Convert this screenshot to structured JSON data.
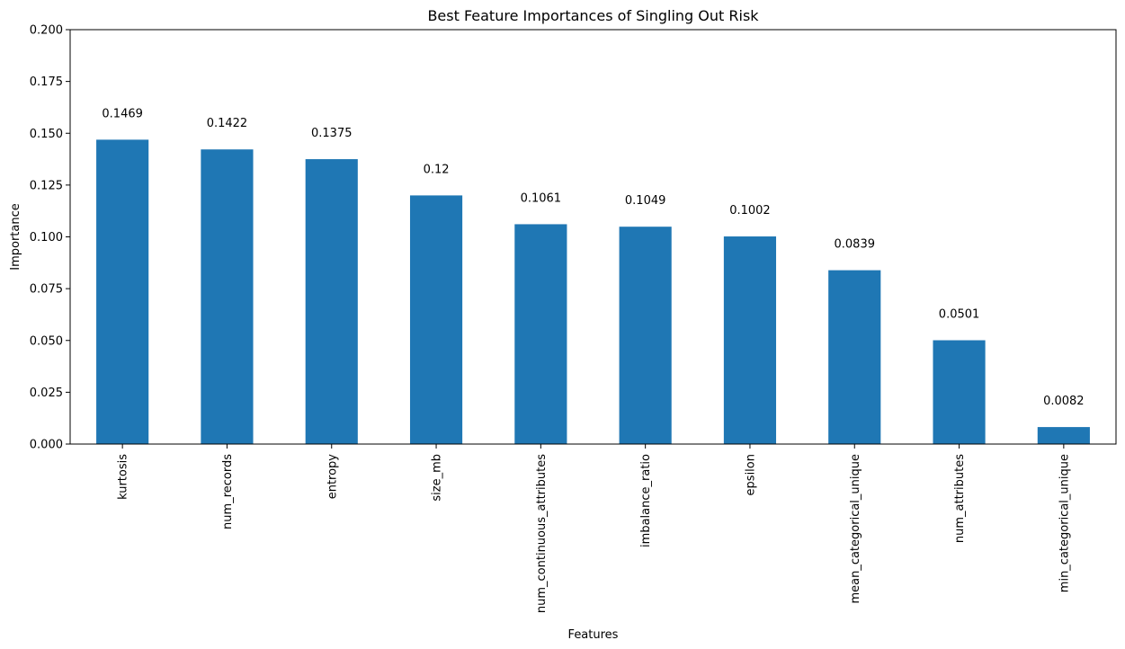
{
  "chart_data": {
    "type": "bar",
    "title": "Best Feature Importances of Singling Out Risk",
    "xlabel": "Features",
    "ylabel": "Importance",
    "categories": [
      "kurtosis",
      "num_records",
      "entropy",
      "size_mb",
      "num_continuous_attributes",
      "imbalance_ratio",
      "epsilon",
      "mean_categorical_unique",
      "num_attributes",
      "min_categorical_unique"
    ],
    "values": [
      0.1469,
      0.1422,
      0.1375,
      0.12,
      0.1061,
      0.1049,
      0.1002,
      0.0839,
      0.0501,
      0.0082
    ],
    "value_labels": [
      "0.1469",
      "0.1422",
      "0.1375",
      "0.12",
      "0.1061",
      "0.1049",
      "0.1002",
      "0.0839",
      "0.0501",
      "0.0082"
    ],
    "ylim": [
      0,
      0.2
    ],
    "yticks": [
      0,
      0.025,
      0.05,
      0.075,
      0.1,
      0.125,
      0.15,
      0.175,
      0.2
    ],
    "ytick_labels": [
      "0.000",
      "0.025",
      "0.050",
      "0.075",
      "0.100",
      "0.125",
      "0.150",
      "0.175",
      "0.200"
    ],
    "bar_color": "#1f77b4",
    "grid": false,
    "legend": false
  }
}
